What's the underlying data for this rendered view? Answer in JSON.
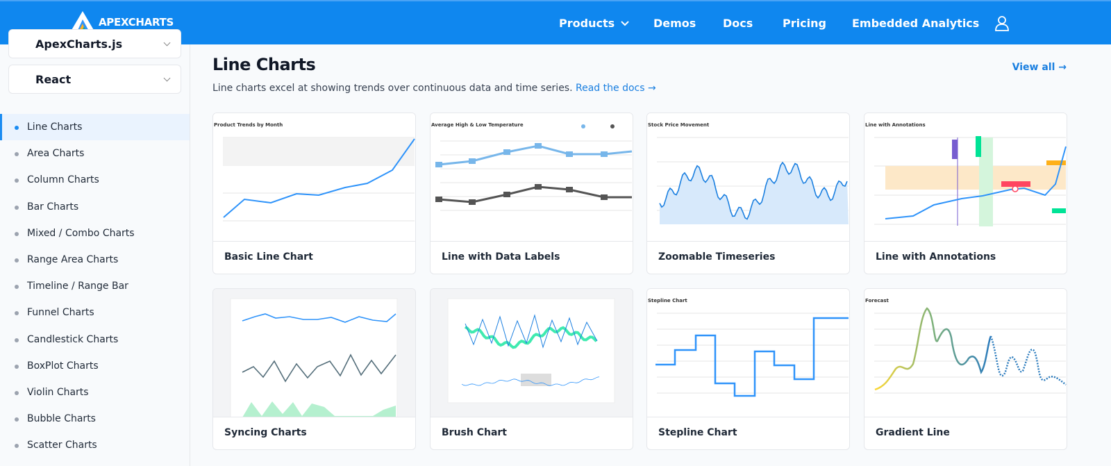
{
  "header": {
    "logo": "APEXCHARTS",
    "nav": [
      "Products",
      "Demos",
      "Docs",
      "Pricing",
      "Embedded Analytics"
    ]
  },
  "sidebar": {
    "selects": [
      "ApexCharts.js",
      "React"
    ],
    "items": [
      "Line Charts",
      "Area Charts",
      "Column Charts",
      "Bar Charts",
      "Mixed / Combo Charts",
      "Range Area Charts",
      "Timeline / Range Bar",
      "Funnel Charts",
      "Candlestick Charts",
      "BoxPlot Charts",
      "Violin Charts",
      "Bubble Charts",
      "Scatter Charts"
    ]
  },
  "main": {
    "title": "Line Charts",
    "description": "Line charts excel at showing trends over continuous data and time series.",
    "docs_link": "Read the docs →",
    "view_all": "View all →",
    "cards": [
      {
        "title": "Basic Line Chart",
        "thumb": "Product Trends by Month"
      },
      {
        "title": "Line with Data Labels",
        "thumb": "Average High & Low Temperature"
      },
      {
        "title": "Zoomable Timeseries",
        "thumb": "Stock Price Movement"
      },
      {
        "title": "Line with Annotations",
        "thumb": "Line with Annotations"
      },
      {
        "title": "Syncing Charts"
      },
      {
        "title": "Brush Chart"
      },
      {
        "title": "Stepline Chart",
        "thumb": "Stepline Chart"
      },
      {
        "title": "Gradient Line",
        "thumb": "Forecast"
      }
    ]
  }
}
